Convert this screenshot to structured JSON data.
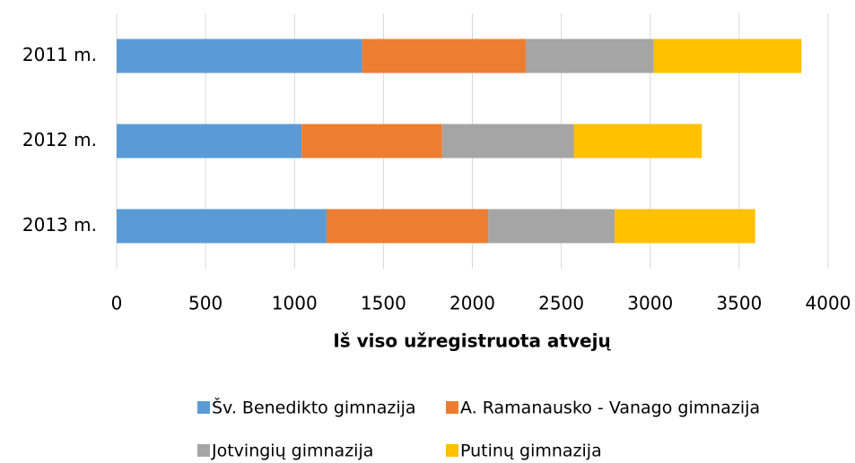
{
  "chart_data": {
    "type": "stacked_barh",
    "x_label": "Iš viso užregistruota atvejų",
    "categories": [
      "2011 m.",
      "2012 m.",
      "2013 m."
    ],
    "series": [
      {
        "name": "Šv. Benedikto gimnazija",
        "color": "#5b9bd5",
        "values": [
          1380,
          1040,
          1180
        ]
      },
      {
        "name": "A. Ramanausko - Vanago gimnazija",
        "color": "#ed7d31",
        "values": [
          920,
          790,
          910
        ]
      },
      {
        "name": "Jotvingių gimnazija",
        "color": "#a5a5a5",
        "values": [
          720,
          740,
          710
        ]
      },
      {
        "name": "Putinų gimnazija",
        "color": "#ffc000",
        "values": [
          830,
          720,
          790
        ]
      }
    ],
    "xlim": [
      0,
      4000
    ],
    "xticks": [
      0,
      500,
      1000,
      1500,
      2000,
      2500,
      3000,
      3500,
      4000
    ],
    "grid": true,
    "legend": "bottom"
  }
}
